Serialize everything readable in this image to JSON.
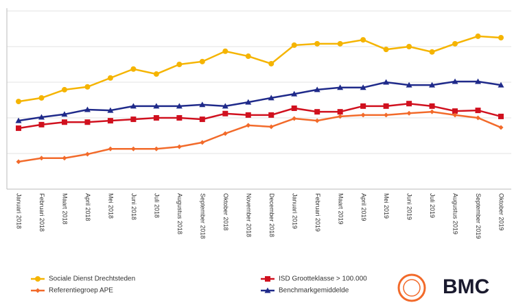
{
  "chart_data": {
    "type": "line",
    "categories": [
      "Januari 2018",
      "Februari 2018",
      "Maart 2018",
      "April 2018",
      "Mei 2018",
      "Juni 2018",
      "Juli 2018",
      "Augustus 2018",
      "September 2018",
      "Oktober 2018",
      "November 2018",
      "December 2018",
      "Januari 2019",
      "Februari 2019",
      "Maart 2019",
      "April 2019",
      "Mei 2019",
      "Juni 2019",
      "Juli 2019",
      "Augustus 2019",
      "September 2019",
      "Oktober 2019"
    ],
    "series": [
      {
        "name": "Sociale Dienst Drechtsteden",
        "color": "#f5b400",
        "marker": "circle",
        "values": [
          2.46,
          2.56,
          2.79,
          2.87,
          3.12,
          3.37,
          3.23,
          3.5,
          3.58,
          3.87,
          3.73,
          3.52,
          4.04,
          4.08,
          4.08,
          4.19,
          3.92,
          4.0,
          3.85,
          4.08,
          4.29,
          4.25
        ]
      },
      {
        "name": "ISD Grootteklasse > 100.000",
        "color": "#d0101e",
        "marker": "square",
        "values": [
          1.71,
          1.81,
          1.88,
          1.88,
          1.92,
          1.96,
          2.0,
          2.0,
          1.96,
          2.12,
          2.08,
          2.08,
          2.27,
          2.17,
          2.17,
          2.33,
          2.33,
          2.4,
          2.33,
          2.19,
          2.21,
          2.04
        ]
      },
      {
        "name": "Referentiegroep APE",
        "color": "#f26a2a",
        "marker": "diamond",
        "values": [
          0.77,
          0.87,
          0.87,
          0.98,
          1.13,
          1.13,
          1.13,
          1.19,
          1.31,
          1.56,
          1.79,
          1.75,
          1.98,
          1.92,
          2.04,
          2.08,
          2.08,
          2.13,
          2.17,
          2.08,
          2.0,
          1.73
        ]
      },
      {
        "name": "Benchmarkgemiddelde",
        "color": "#1f2a8a",
        "marker": "triangle",
        "values": [
          1.92,
          2.02,
          2.1,
          2.23,
          2.21,
          2.33,
          2.33,
          2.33,
          2.37,
          2.33,
          2.44,
          2.56,
          2.67,
          2.79,
          2.85,
          2.85,
          3.0,
          2.92,
          2.92,
          3.02,
          3.02,
          2.92
        ]
      }
    ],
    "ylim": [
      0,
      5
    ],
    "yticks": [
      0,
      1,
      2,
      3,
      4,
      5
    ],
    "grid": true,
    "legend": "bottom",
    "logo": "BMC"
  }
}
